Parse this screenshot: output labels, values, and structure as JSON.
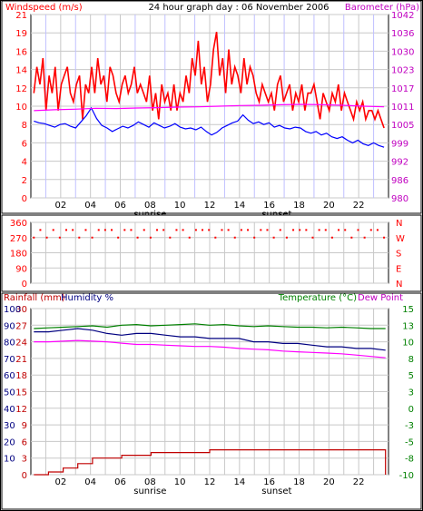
{
  "chart_data": [
    {
      "type": "line",
      "title": "24 hour graph day : 06 November 2006",
      "left_axis_label": "Windspeed (m/s)",
      "right_axis_label": "Barometer (hPa)",
      "left_ylim": [
        0,
        21
      ],
      "left_ticks": [
        "0",
        "2",
        "4",
        "6",
        "8",
        "10",
        "12",
        "14",
        "16",
        "19",
        "21"
      ],
      "right_ylim": [
        980,
        1042
      ],
      "right_ticks": [
        "980",
        "986",
        "992",
        "999",
        "1005",
        "1011",
        "1017",
        "1023",
        "1030",
        "1036",
        "1042"
      ],
      "x_ticks": [
        "02",
        "04",
        "06",
        "08",
        "10",
        "12",
        "14",
        "16",
        "18",
        "20",
        "22"
      ],
      "annotations": [
        "sunrise",
        "sunset"
      ],
      "grid": true,
      "colors": {
        "gust": "#ff0000",
        "average": "#0000ff",
        "barometer": "#ff00ff",
        "grid": "#c8c8c8",
        "hour_marks": "#c0c0ff"
      },
      "series": [
        {
          "name": "",
          "color": "#ff0000",
          "values": [
            12,
            15,
            13,
            16,
            10,
            14,
            12,
            15,
            10,
            13,
            14,
            15,
            12,
            11,
            13,
            14,
            9,
            13,
            12,
            15,
            12,
            16,
            13,
            14,
            11,
            15,
            14,
            12,
            11,
            13,
            14,
            12,
            13,
            15,
            12,
            13,
            12,
            11,
            14,
            10,
            12,
            9,
            13,
            11,
            12,
            10,
            13,
            10,
            12,
            11,
            14,
            12,
            16,
            14,
            18,
            13,
            15,
            11,
            13,
            17,
            19,
            14,
            16,
            12,
            17,
            13,
            15,
            14,
            12,
            16,
            13,
            15,
            14,
            12,
            11,
            13,
            12,
            11,
            12,
            10,
            13,
            14,
            11,
            12,
            13,
            10,
            12,
            11,
            13,
            10,
            12,
            12,
            13,
            11,
            9,
            12,
            11,
            10,
            12,
            11,
            13,
            10,
            12,
            11,
            10,
            9,
            11,
            10,
            11,
            9,
            10,
            10,
            9,
            10,
            9,
            8
          ]
        },
        {
          "name": "",
          "color": "#0000ff",
          "values": [
            8.8,
            8.6,
            8.5,
            8.3,
            8.1,
            8.4,
            8.5,
            8.2,
            8.0,
            8.7,
            9.4,
            10.3,
            9.1,
            8.3,
            8.0,
            7.6,
            7.9,
            8.2,
            8.0,
            8.3,
            8.7,
            8.4,
            8.1,
            8.6,
            8.3,
            8.0,
            8.2,
            8.5,
            8.1,
            7.9,
            8.0,
            7.8,
            8.1,
            7.6,
            7.2,
            7.5,
            8.0,
            8.3,
            8.6,
            8.8,
            9.5,
            8.9,
            8.5,
            8.7,
            8.4,
            8.6,
            8.1,
            8.3,
            8.0,
            7.9,
            8.1,
            8.0,
            7.6,
            7.4,
            7.6,
            7.2,
            7.4,
            7.0,
            6.8,
            7.0,
            6.6,
            6.3,
            6.6,
            6.2,
            6.0,
            6.3,
            6.0,
            5.8
          ]
        },
        {
          "name": "",
          "color": "#ff00ff",
          "axis": "right",
          "values": [
            1009.5,
            1009.8,
            1010.0,
            1010.3,
            1010.2,
            1010.4,
            1010.5,
            1010.7,
            1010.8,
            1011.0,
            1011.2,
            1011.3,
            1011.5,
            1011.6,
            1011.5,
            1011.3,
            1011.0,
            1010.8
          ]
        }
      ]
    },
    {
      "type": "scatter",
      "left_ylim": [
        0,
        360
      ],
      "left_ticks": [
        "0",
        "90",
        "180",
        "270",
        "360"
      ],
      "right_ticks": [
        "N",
        "W",
        "S",
        "E",
        "N"
      ],
      "colors": {
        "points": "#ff0000",
        "grid": "#c8c8c8"
      },
      "values": [
        270,
        315,
        270,
        315,
        270,
        315,
        315,
        270,
        315,
        270,
        315,
        315,
        315,
        270,
        315,
        315,
        270,
        315,
        270,
        315,
        315,
        270,
        315,
        315,
        270,
        315,
        315,
        315,
        270,
        315,
        315,
        270,
        315,
        315,
        270,
        315,
        315,
        270,
        315,
        270,
        315,
        315,
        315,
        270,
        315,
        315,
        270,
        315,
        315,
        270,
        315,
        270,
        315,
        315,
        270
      ]
    },
    {
      "type": "line",
      "left_axis_label_1": "Rainfall (mm)",
      "left_axis_label_2": "Humidity %",
      "right_axis_label_1": "Temperature (°C)",
      "right_axis_label_2": "Dew Point",
      "rain_ticks": [
        "0",
        "3",
        "6",
        "9",
        "12",
        "15",
        "18",
        "21",
        "24",
        "27",
        "30"
      ],
      "humidity_ticks": [
        "10",
        "20",
        "30",
        "40",
        "50",
        "60",
        "70",
        "80",
        "90",
        "100"
      ],
      "temp_ticks": [
        "-10",
        "-8",
        "-5",
        "-3",
        "0",
        "3",
        "5",
        "8",
        "10",
        "13",
        "15"
      ],
      "x_ticks": [
        "02",
        "04",
        "06",
        "08",
        "10",
        "12",
        "14",
        "16",
        "18",
        "20",
        "22"
      ],
      "annotations": [
        "sunrise",
        "sunset"
      ],
      "colors": {
        "temperature": "#008000",
        "humidity": "#000080",
        "dewpoint": "#ff00ff",
        "rain": "#c00000",
        "grid": "#c8c8c8"
      },
      "series": [
        {
          "name": "Temperature (°C)",
          "color": "#008000",
          "values": [
            12.0,
            12.1,
            12.2,
            12.3,
            12.4,
            12.2,
            12.5,
            12.6,
            12.4,
            12.5,
            12.6,
            12.7,
            12.5,
            12.6,
            12.4,
            12.3,
            12.4,
            12.3,
            12.2,
            12.2,
            12.1,
            12.2,
            12.1,
            12.0,
            12.0
          ]
        },
        {
          "name": "Humidity %",
          "color": "#000080",
          "values": [
            86,
            86,
            87,
            88,
            87,
            85,
            84,
            85,
            85,
            84,
            83,
            83,
            82,
            82,
            82,
            80,
            80,
            79,
            79,
            78,
            77,
            77,
            76,
            76,
            75
          ]
        },
        {
          "name": "Dew Point",
          "color": "#ff00ff",
          "values": [
            10.0,
            10.0,
            10.1,
            10.2,
            10.1,
            10.0,
            9.8,
            9.6,
            9.6,
            9.5,
            9.4,
            9.3,
            9.3,
            9.2,
            9.0,
            8.9,
            8.8,
            8.6,
            8.5,
            8.4,
            8.3,
            8.2,
            8.0,
            7.8,
            7.6
          ]
        },
        {
          "name": "Rainfall (mm)",
          "color": "#c00000",
          "values": [
            0,
            0.5,
            1.2,
            2.0,
            3.0,
            3.0,
            3.5,
            3.5,
            4.0,
            4.0,
            4.0,
            4.0,
            4.5,
            4.5,
            4.5,
            4.5,
            4.5,
            4.5,
            4.5,
            4.5,
            4.5,
            4.5,
            4.5,
            4.5,
            0
          ]
        }
      ]
    }
  ]
}
